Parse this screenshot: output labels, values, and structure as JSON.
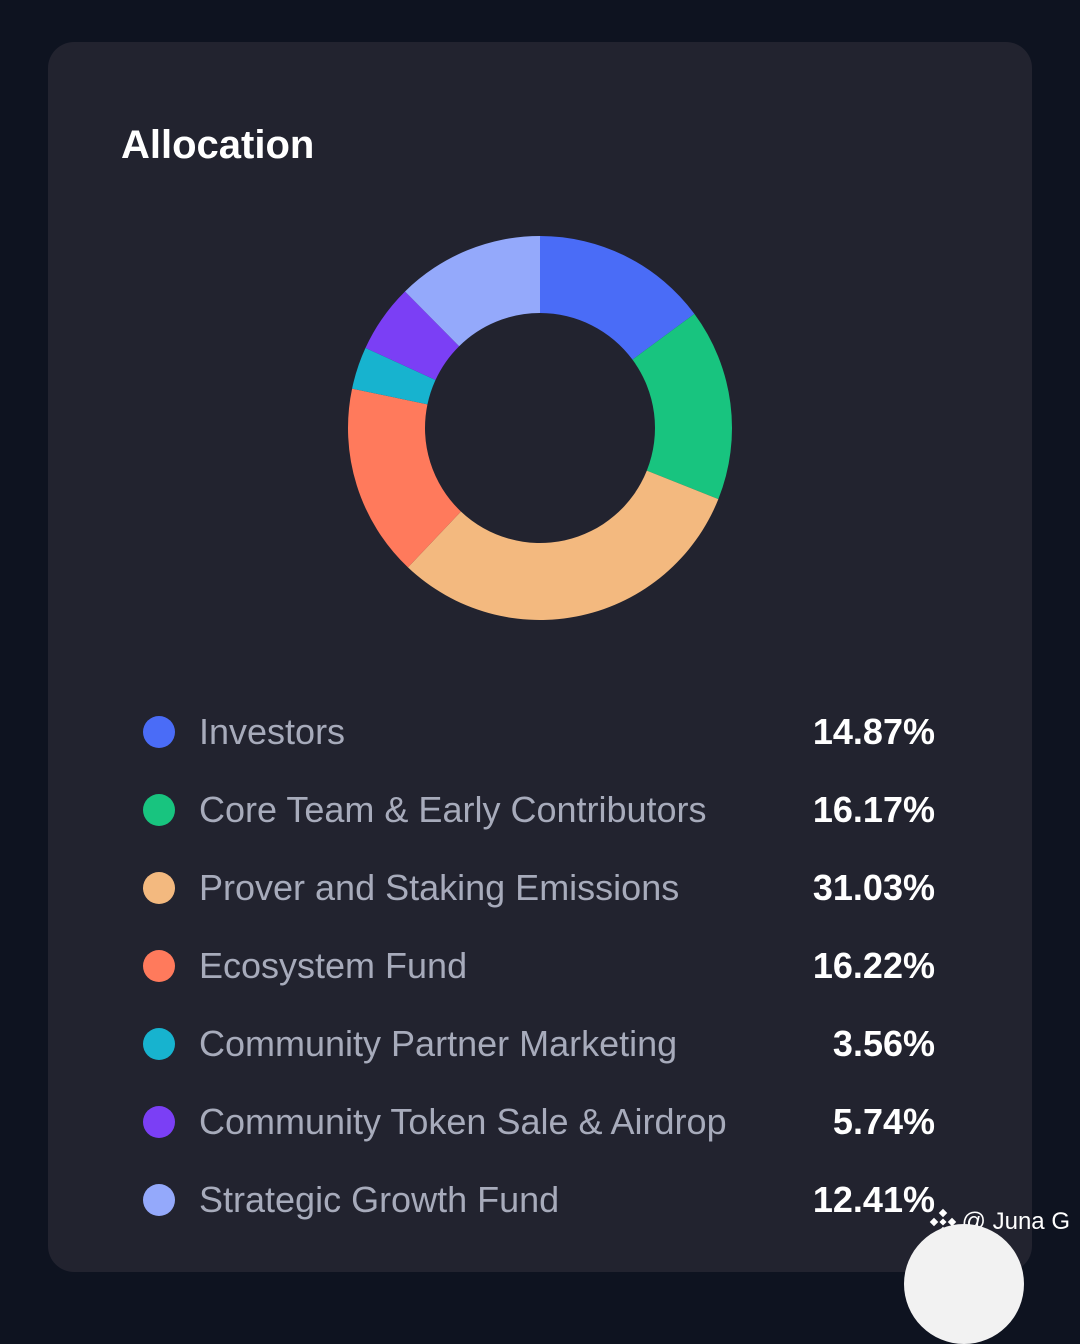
{
  "chart_data": {
    "type": "pie",
    "title": "Allocation",
    "donut": true,
    "categories": [
      "Investors",
      "Core Team & Early Contributors",
      "Prover and Staking Emissions",
      "Ecosystem Fund",
      "Community Partner Marketing",
      "Community Token Sale & Airdrop",
      "Strategic Growth Fund"
    ],
    "values": [
      14.87,
      16.17,
      31.03,
      16.22,
      3.56,
      5.74,
      12.41
    ],
    "value_labels": [
      "14.87%",
      "16.17%",
      "31.03%",
      "16.22%",
      "3.56%",
      "5.74%",
      "12.41%"
    ],
    "colors": [
      "#4a6cf7",
      "#18c47f",
      "#f3b97f",
      "#ff7a5c",
      "#17b3cf",
      "#7b3ff5",
      "#94a9fb"
    ],
    "legend_position": "bottom"
  },
  "watermark": {
    "text": "@ Juna G",
    "icon": "binance-icon"
  }
}
